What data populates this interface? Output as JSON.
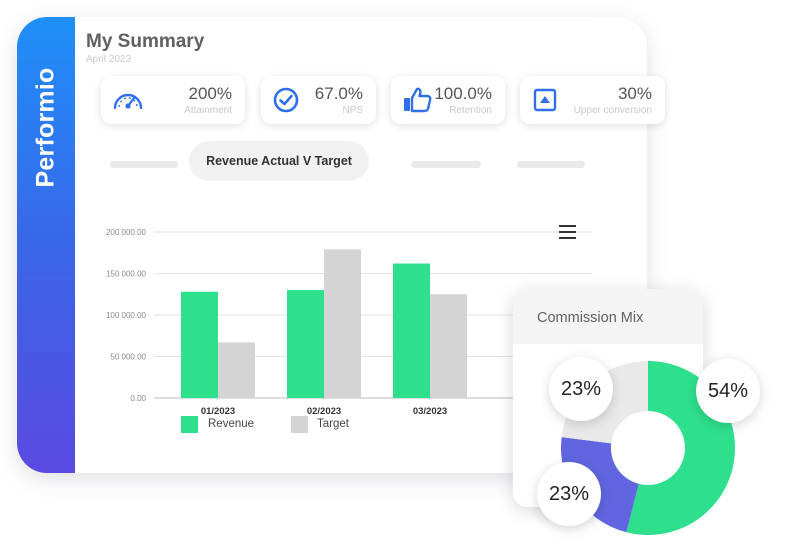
{
  "brand": {
    "name": "Performio"
  },
  "header": {
    "title": "My Summary",
    "subtitle": "April 2023"
  },
  "kpis": [
    {
      "value": "200%",
      "label": "Attainment",
      "icon": "gauge-icon"
    },
    {
      "value": "67.0%",
      "label": "NPS",
      "icon": "check-circle-icon"
    },
    {
      "value": "100.0%",
      "label": "Retention",
      "icon": "thumbs-up-icon"
    },
    {
      "value": "30%",
      "label": "Upper conversion",
      "icon": "arrow-up-box-icon"
    }
  ],
  "tabs": {
    "active_label": "Revenue Actual V Target"
  },
  "legend": {
    "revenue": "Revenue",
    "target": "Target"
  },
  "colors": {
    "revenue": "#2ee08d",
    "target": "#d4d4d4",
    "accent": "#3f7ff0",
    "donut_blue": "#6166e0"
  },
  "chart_data": {
    "type": "bar",
    "categories": [
      "01/2023",
      "02/2023",
      "03/2023"
    ],
    "series": [
      {
        "name": "Revenue",
        "values": [
          128000,
          130000,
          162000
        ]
      },
      {
        "name": "Target",
        "values": [
          67000,
          179000,
          125000
        ]
      }
    ],
    "yticks": [
      "200 000.00",
      "150 000.00",
      "100 000.00",
      "50 000.00",
      "0.00"
    ],
    "ylim": [
      0,
      200000
    ],
    "grid": true,
    "legend": "bottom"
  },
  "commission": {
    "title": "Commission Mix",
    "chart_data": {
      "type": "pie",
      "slices": [
        {
          "label": "54%",
          "value": 54
        },
        {
          "label": "23%",
          "value": 23
        },
        {
          "label": "23%",
          "value": 23
        }
      ]
    }
  }
}
